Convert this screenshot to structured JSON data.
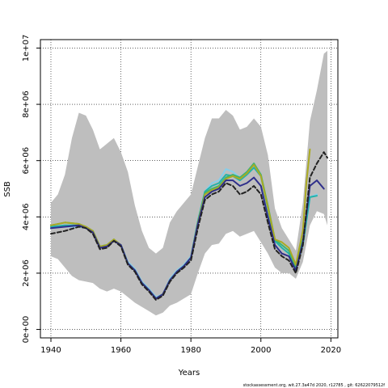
{
  "chart_data": {
    "type": "line",
    "xlabel": "Years",
    "ylabel": "SSB",
    "xlim": [
      1937,
      2022
    ],
    "ylim": [
      -300000,
      10300000
    ],
    "x_ticks": [
      1940,
      1960,
      1980,
      2000,
      2020
    ],
    "x_tick_labels": [
      "1940",
      "1960",
      "1980",
      "2000",
      "2020"
    ],
    "y_ticks": [
      0,
      2000000,
      4000000,
      6000000,
      8000000,
      10000000
    ],
    "y_tick_labels": [
      "0e+00",
      "2e+06",
      "4e+06",
      "6e+06",
      "8e+06",
      "1e+07"
    ],
    "grid": true,
    "footer": "stockassessment.org, wit.27.3a47d   2020, r12785 , git: 62622079512f",
    "band": {
      "color": "#bebebe",
      "x": [
        1940,
        1942,
        1944,
        1946,
        1948,
        1950,
        1952,
        1954,
        1956,
        1958,
        1960,
        1962,
        1964,
        1966,
        1968,
        1970,
        1972,
        1974,
        1976,
        1978,
        1980,
        1982,
        1984,
        1986,
        1988,
        1990,
        1992,
        1994,
        1996,
        1998,
        2000,
        2002,
        2004,
        2006,
        2008,
        2010,
        2012,
        2014,
        2016,
        2018,
        2019
      ],
      "upper": [
        4500000,
        4800000,
        5500000,
        6800000,
        7700000,
        7600000,
        7100000,
        6400000,
        6600000,
        6800000,
        6300000,
        5600000,
        4400000,
        3500000,
        2900000,
        2700000,
        2900000,
        3800000,
        4200000,
        4500000,
        4800000,
        5800000,
        6800000,
        7500000,
        7500000,
        7800000,
        7600000,
        7100000,
        7200000,
        7500000,
        7200000,
        6200000,
        4300000,
        3600000,
        3200000,
        2800000,
        4500000,
        7400000,
        8500000,
        9800000,
        9900000
      ],
      "lower": [
        2600000,
        2500000,
        2200000,
        1900000,
        1750000,
        1700000,
        1650000,
        1450000,
        1350000,
        1450000,
        1350000,
        1150000,
        950000,
        800000,
        650000,
        500000,
        600000,
        850000,
        950000,
        1100000,
        1250000,
        2000000,
        2700000,
        3000000,
        3050000,
        3400000,
        3500000,
        3300000,
        3400000,
        3500000,
        3100000,
        2700000,
        2200000,
        2000000,
        2000000,
        1800000,
        2400000,
        3700000,
        4200000,
        4100000,
        3700000
      ]
    },
    "series": [
      {
        "color": "#87ceeb",
        "dashed": false,
        "x": [
          1940,
          1944,
          1948,
          1950,
          1952,
          1954,
          1956,
          1958,
          1960,
          1962,
          1964,
          1966,
          1968,
          1970,
          1972,
          1974,
          1976,
          1978,
          1980,
          1982,
          1984,
          1986,
          1988,
          1990,
          1992,
          1994,
          1996,
          1998,
          2000,
          2002,
          2004,
          2006,
          2008,
          2010,
          2012,
          2014,
          2016
        ],
        "y": [
          3600000,
          3650000,
          3650000,
          3600000,
          3500000,
          2950000,
          3000000,
          3150000,
          3000000,
          2400000,
          2150000,
          1700000,
          1450000,
          1150000,
          1250000,
          1800000,
          2100000,
          2300000,
          2600000,
          3900000,
          4900000,
          5200000,
          5300000,
          5700000,
          5600000,
          5400000,
          5600000,
          5800000,
          5500000,
          4300000,
          3200000,
          3000000,
          2800000,
          2300000,
          3100000,
          4700000,
          4800000
        ]
      },
      {
        "color": "#20b2aa",
        "dashed": false,
        "x": [
          1940,
          1944,
          1948,
          1950,
          1952,
          1954,
          1956,
          1958,
          1960,
          1962,
          1964,
          1966,
          1968,
          1970,
          1972,
          1974,
          1976,
          1978,
          1980,
          1982,
          1984,
          1986,
          1988,
          1990,
          1992,
          1994,
          1996,
          1998,
          2000,
          2002,
          2004,
          2006,
          2008,
          2010,
          2012,
          2014,
          2016
        ],
        "y": [
          3650000,
          3700000,
          3700000,
          3600000,
          3500000,
          2950000,
          3000000,
          3150000,
          3000000,
          2350000,
          2100000,
          1650000,
          1400000,
          1100000,
          1250000,
          1750000,
          2050000,
          2250000,
          2550000,
          3850000,
          4900000,
          5100000,
          5200000,
          5500000,
          5450000,
          5300000,
          5500000,
          5750000,
          5450000,
          4300000,
          3150000,
          2900000,
          2700000,
          2150000,
          3000000,
          4700000,
          4750000
        ]
      },
      {
        "color": "#3cb371",
        "dashed": false,
        "x": [
          1940,
          1944,
          1948,
          1950,
          1952,
          1954,
          1956,
          1958,
          1960,
          1962,
          1964,
          1966,
          1968,
          1970,
          1972,
          1974,
          1976,
          1978,
          1980,
          1982,
          1984,
          1986,
          1988,
          1990,
          1992,
          1994,
          1996,
          1998,
          2000,
          2002,
          2004,
          2006,
          2008,
          2010,
          2012
        ],
        "y": [
          3700000,
          3800000,
          3750000,
          3650000,
          3500000,
          2950000,
          3000000,
          3200000,
          3000000,
          2350000,
          2100000,
          1650000,
          1400000,
          1100000,
          1250000,
          1750000,
          2050000,
          2250000,
          2550000,
          3800000,
          4850000,
          5000000,
          5100000,
          5400000,
          5500000,
          5400000,
          5600000,
          5900000,
          5500000,
          4400000,
          3200000,
          3000000,
          2800000,
          2200000,
          3200000
        ]
      },
      {
        "color": "#aaaa22",
        "dashed": false,
        "x": [
          1940,
          1944,
          1948,
          1950,
          1952,
          1954,
          1956,
          1958,
          1960,
          1962,
          1964,
          1966,
          1968,
          1970,
          1972,
          1974,
          1976,
          1978,
          1980,
          1982,
          1984,
          1986,
          1988,
          1990,
          1992,
          1994,
          1996,
          1998,
          2000,
          2002,
          2004,
          2006,
          2008,
          2010,
          2012,
          2013,
          2014
        ],
        "y": [
          3700000,
          3800000,
          3750000,
          3650000,
          3500000,
          2950000,
          3000000,
          3200000,
          3000000,
          2350000,
          2100000,
          1650000,
          1400000,
          1100000,
          1250000,
          1750000,
          2050000,
          2250000,
          2550000,
          3800000,
          4800000,
          4950000,
          5050000,
          5350000,
          5450000,
          5350000,
          5550000,
          5850000,
          5450000,
          4350000,
          3200000,
          3100000,
          2900000,
          2300000,
          3500000,
          5200000,
          6400000
        ]
      },
      {
        "color": "#2e2e8b",
        "dashed": false,
        "x": [
          1940,
          1944,
          1948,
          1950,
          1952,
          1954,
          1956,
          1958,
          1960,
          1962,
          1964,
          1966,
          1968,
          1970,
          1972,
          1974,
          1976,
          1978,
          1980,
          1982,
          1984,
          1986,
          1988,
          1990,
          1992,
          1994,
          1996,
          1998,
          2000,
          2002,
          2004,
          2006,
          2008,
          2010,
          2012,
          2014,
          2016,
          2018
        ],
        "y": [
          3600000,
          3650000,
          3700000,
          3600000,
          3450000,
          2900000,
          2950000,
          3150000,
          3000000,
          2350000,
          2100000,
          1650000,
          1400000,
          1100000,
          1250000,
          1750000,
          2050000,
          2250000,
          2550000,
          3750000,
          4700000,
          4900000,
          5000000,
          5300000,
          5300000,
          5100000,
          5200000,
          5400000,
          5100000,
          4000000,
          3000000,
          2700000,
          2600000,
          2100000,
          3100000,
          5100000,
          5300000,
          5000000
        ]
      },
      {
        "color": "#222222",
        "dashed": true,
        "x": [
          1940,
          1944,
          1948,
          1950,
          1952,
          1954,
          1956,
          1958,
          1960,
          1962,
          1964,
          1966,
          1968,
          1970,
          1972,
          1974,
          1976,
          1978,
          1980,
          1982,
          1984,
          1986,
          1988,
          1990,
          1992,
          1994,
          1996,
          1998,
          2000,
          2002,
          2004,
          2006,
          2008,
          2010,
          2012,
          2014,
          2016,
          2018,
          2019
        ],
        "y": [
          3400000,
          3500000,
          3650000,
          3600000,
          3400000,
          2850000,
          2900000,
          3150000,
          2950000,
          2300000,
          2050000,
          1600000,
          1350000,
          1050000,
          1200000,
          1700000,
          2000000,
          2200000,
          2450000,
          3600000,
          4600000,
          4800000,
          4900000,
          5200000,
          5100000,
          4800000,
          4900000,
          5100000,
          4800000,
          3800000,
          2850000,
          2600000,
          2450000,
          2000000,
          3000000,
          5400000,
          5900000,
          6300000,
          6100000
        ]
      }
    ]
  }
}
